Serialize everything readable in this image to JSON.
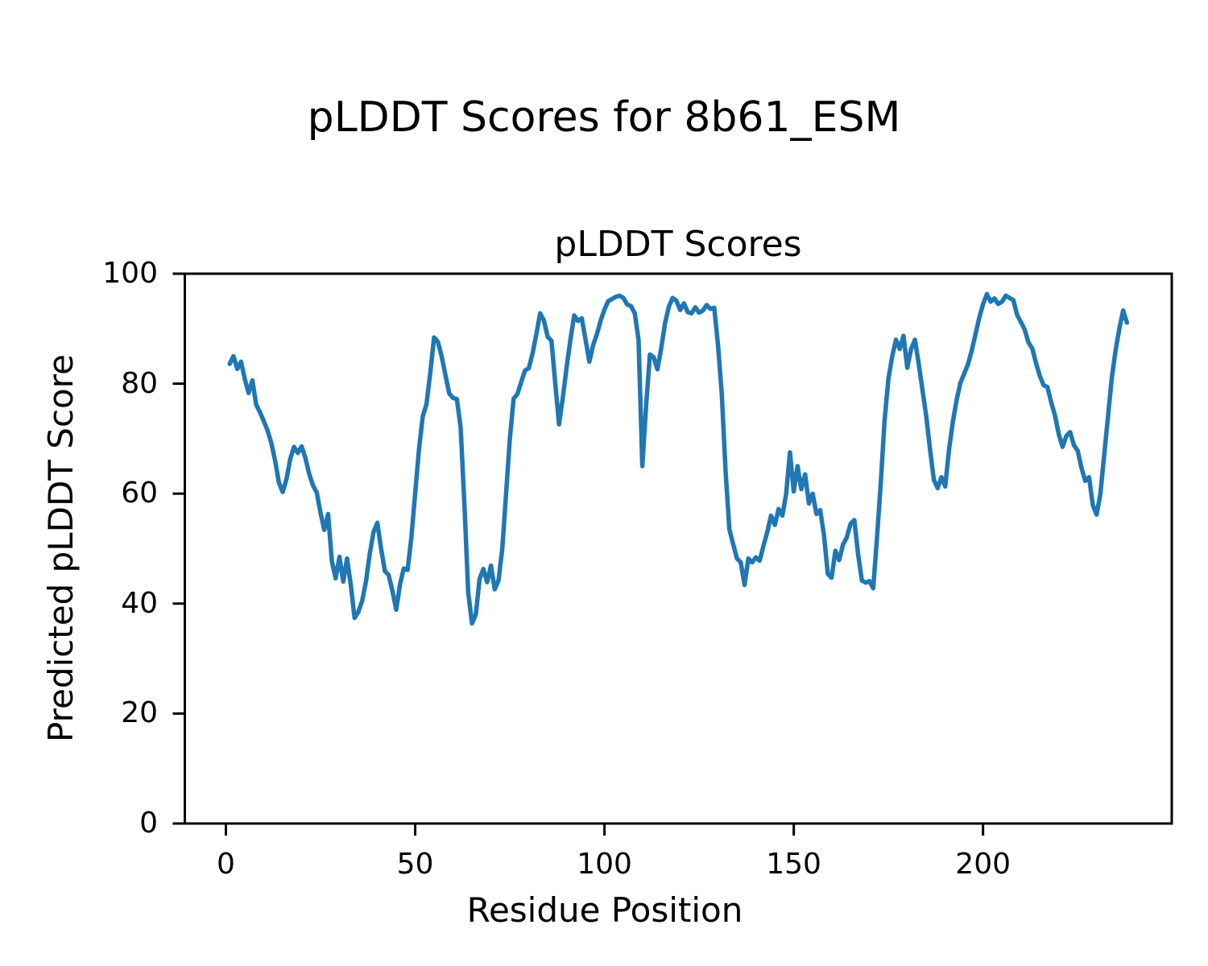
{
  "figure": {
    "title": "pLDDT Scores for 8b61_ESM"
  },
  "chart_data": {
    "type": "line",
    "title": "pLDDT Scores",
    "xlabel": "Residue Position",
    "ylabel": "Predicted pLDDT Score",
    "x_ticks": [
      0,
      50,
      100,
      150,
      200
    ],
    "y_ticks": [
      0,
      20,
      40,
      60,
      80,
      100
    ],
    "xlim": [
      -10.85,
      249.85
    ],
    "ylim": [
      0,
      100
    ],
    "grid": false,
    "legend_position": "none",
    "line_color": "#1f77b4",
    "axis_color": "#000000",
    "background_color": "#ffffff",
    "series": [
      {
        "name": "pLDDT",
        "x_start": 1,
        "values": [
          83.6,
          85.0,
          82.7,
          84.0,
          80.8,
          78.3,
          80.6,
          76.2,
          74.8,
          73.2,
          71.5,
          69.2,
          66.0,
          62.0,
          60.3,
          62.6,
          66.3,
          68.5,
          67.4,
          68.6,
          66.5,
          63.6,
          61.5,
          60.2,
          56.5,
          53.4,
          56.3,
          47.7,
          44.6,
          48.5,
          44.0,
          48.2,
          43.4,
          37.4,
          38.5,
          40.5,
          44.0,
          49.0,
          53.0,
          54.7,
          50.0,
          45.9,
          45.2,
          42.3,
          38.9,
          43.5,
          46.4,
          46.1,
          52.0,
          60.0,
          68.0,
          74.0,
          76.3,
          82.0,
          88.4,
          87.6,
          85.0,
          81.5,
          78.2,
          77.4,
          77.2,
          72.0,
          58.0,
          42.0,
          36.4,
          38.0,
          44.5,
          46.3,
          43.9,
          46.9,
          42.6,
          44.2,
          50.0,
          60.0,
          70.0,
          77.3,
          78.1,
          80.3,
          82.4,
          82.8,
          85.5,
          89.0,
          92.8,
          91.5,
          88.5,
          87.8,
          80.0,
          72.6,
          77.5,
          83.0,
          88.0,
          92.4,
          91.4,
          91.9,
          88.0,
          84.0,
          87.0,
          89.0,
          91.5,
          93.5,
          95.0,
          95.4,
          95.8,
          96.0,
          95.6,
          94.4,
          94.1,
          92.8,
          88.0,
          65.0,
          76.0,
          85.3,
          84.8,
          82.6,
          86.5,
          91.0,
          94.0,
          95.6,
          95.1,
          93.4,
          94.6,
          93.0,
          92.8,
          93.9,
          92.9,
          93.3,
          94.3,
          93.6,
          93.8,
          87.0,
          78.0,
          64.0,
          53.5,
          50.8,
          48.2,
          47.5,
          43.4,
          48.2,
          47.5,
          48.4,
          47.8,
          50.5,
          53.0,
          56.0,
          54.3,
          57.2,
          56.0,
          60.0,
          67.5,
          60.4,
          65.0,
          60.8,
          63.5,
          58.2,
          60.0,
          56.3,
          57.0,
          52.4,
          45.4,
          44.7,
          49.6,
          47.9,
          50.7,
          52.0,
          54.5,
          55.2,
          49.0,
          44.2,
          43.8,
          44.1,
          42.8,
          52.0,
          62.0,
          73.3,
          80.8,
          84.9,
          88.0,
          86.3,
          88.7,
          82.9,
          86.3,
          88.0,
          83.6,
          78.8,
          74.0,
          68.0,
          62.5,
          61.0,
          63.0,
          61.3,
          68.0,
          73.0,
          77.0,
          80.1,
          81.8,
          83.5,
          86.0,
          89.0,
          92.0,
          94.5,
          96.3,
          94.9,
          95.5,
          94.5,
          94.9,
          96.0,
          95.6,
          95.2,
          92.5,
          91.2,
          89.8,
          87.5,
          86.4,
          83.7,
          81.4,
          79.7,
          79.4,
          76.6,
          74.2,
          70.8,
          68.5,
          70.5,
          71.2,
          68.8,
          67.8,
          64.7,
          62.3,
          63.0,
          57.9,
          56.2,
          60.0,
          67.0,
          74.0,
          81.0,
          86.0,
          90.0,
          93.3,
          91.1
        ]
      }
    ]
  }
}
